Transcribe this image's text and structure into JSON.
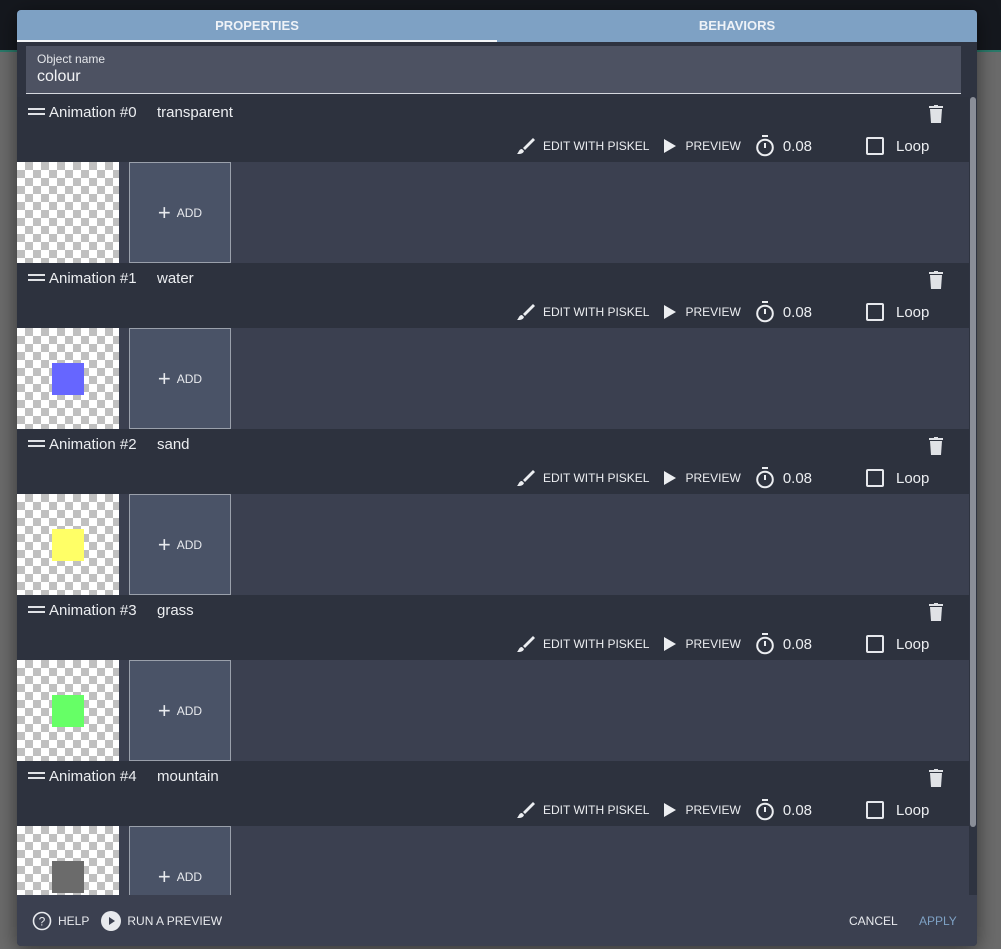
{
  "tabs": [
    {
      "label": "PROPERTIES",
      "active": true
    },
    {
      "label": "BEHAVIORS",
      "active": false
    }
  ],
  "object_name": {
    "label": "Object name",
    "value": "colour"
  },
  "animation_toolbar": {
    "edit_label": "EDIT WITH PISKEL",
    "preview_label": "PREVIEW",
    "loop_label": "Loop",
    "add_label": "ADD"
  },
  "animations": [
    {
      "title": "Animation #0",
      "name": "transparent",
      "duration": "0.08",
      "loop": false,
      "color": null
    },
    {
      "title": "Animation #1",
      "name": "water",
      "duration": "0.08",
      "loop": false,
      "color": "#6666ff"
    },
    {
      "title": "Animation #2",
      "name": "sand",
      "duration": "0.08",
      "loop": false,
      "color": "#ffff66"
    },
    {
      "title": "Animation #3",
      "name": "grass",
      "duration": "0.08",
      "loop": false,
      "color": "#66ff66"
    },
    {
      "title": "Animation #4",
      "name": "mountain",
      "duration": "0.08",
      "loop": false,
      "color": "#6b6b6b"
    }
  ],
  "footer": {
    "help": "HELP",
    "run_preview": "RUN A PREVIEW",
    "cancel": "CANCEL",
    "apply": "APPLY"
  }
}
